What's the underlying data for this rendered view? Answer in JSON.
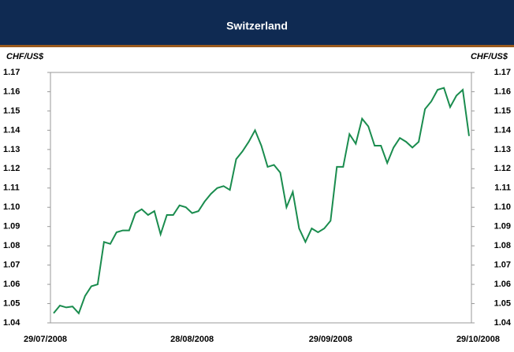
{
  "chart_data": {
    "type": "line",
    "title": "Switzerland",
    "y_label": "CHF/US$",
    "y2_label": "CHF/US$",
    "categories": [
      "29/07/2008",
      null,
      null,
      null,
      null,
      null,
      null,
      null,
      null,
      null,
      null,
      null,
      null,
      null,
      null,
      null,
      null,
      null,
      null,
      null,
      null,
      null,
      "28/08/2008",
      null,
      null,
      null,
      null,
      null,
      null,
      null,
      null,
      null,
      null,
      null,
      null,
      null,
      null,
      null,
      null,
      null,
      null,
      null,
      null,
      null,
      "29/09/2008",
      null,
      null,
      null,
      null,
      null,
      null,
      null,
      null,
      null,
      null,
      null,
      null,
      null,
      null,
      null,
      null,
      null,
      null,
      null,
      null,
      null,
      "29/10/2008"
    ],
    "series": [
      {
        "name": "CHF/US$",
        "color": "#1a8c4e",
        "values": [
          1.045,
          1.049,
          1.048,
          1.0485,
          1.045,
          1.054,
          1.059,
          1.06,
          1.082,
          1.081,
          1.087,
          1.088,
          1.088,
          1.097,
          1.099,
          1.096,
          1.098,
          1.086,
          1.096,
          1.096,
          1.101,
          1.1,
          1.097,
          1.098,
          1.103,
          1.107,
          1.11,
          1.111,
          1.109,
          1.125,
          1.129,
          1.134,
          1.14,
          1.132,
          1.121,
          1.122,
          1.118,
          1.1,
          1.108,
          1.089,
          1.082,
          1.089,
          1.087,
          1.089,
          1.093,
          1.121,
          1.121,
          1.138,
          1.133,
          1.146,
          1.142,
          1.132,
          1.132,
          1.123,
          1.131,
          1.136,
          1.134,
          1.131,
          1.134,
          1.151,
          1.155,
          1.161,
          1.162,
          1.152,
          1.158,
          1.161,
          1.137
        ]
      }
    ],
    "ylim": [
      1.04,
      1.17
    ],
    "yticks": [
      1.04,
      1.05,
      1.06,
      1.07,
      1.08,
      1.09,
      {
        "value": 1.1,
        "label": "1.10"
      },
      1.11,
      1.12,
      1.13,
      1.14,
      1.15,
      1.16,
      1.17
    ],
    "y2lim": [
      1.04,
      1.17
    ],
    "y2ticks": [
      1.04,
      1.05,
      1.06,
      1.07,
      1.08,
      1.09,
      {
        "value": 1.1,
        "label": "1.10"
      },
      1.11,
      1.12,
      1.13,
      1.14,
      1.15,
      1.16,
      1.17
    ]
  }
}
